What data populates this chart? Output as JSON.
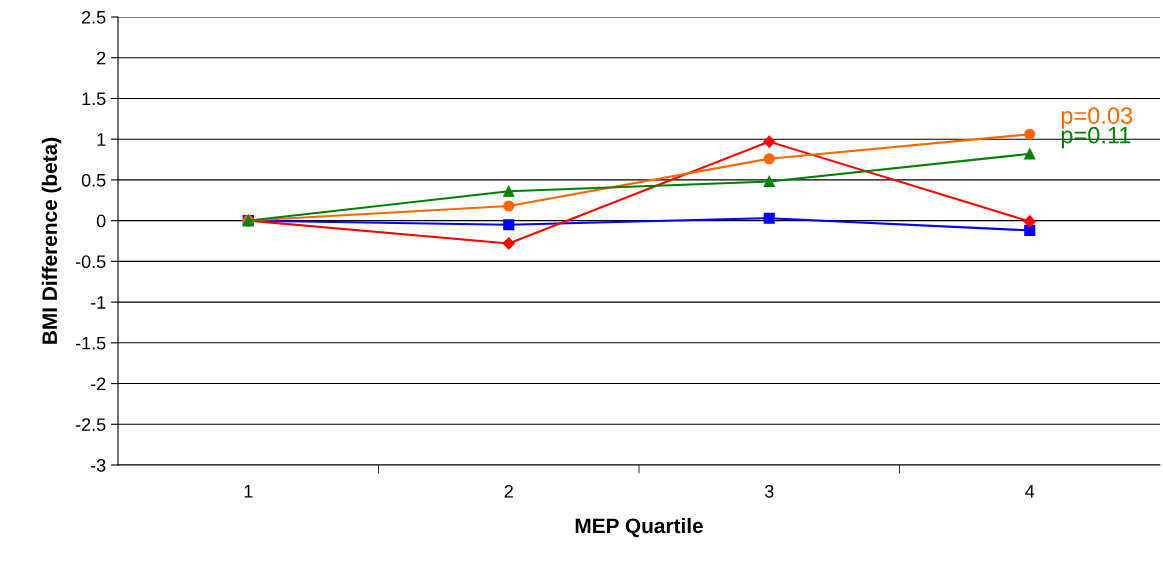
{
  "chart_data": {
    "type": "line",
    "xlabel": "MEP Quartile",
    "ylabel": "BMI Difference (beta)",
    "categories": [
      "1",
      "2",
      "3",
      "4"
    ],
    "series": [
      {
        "color": "#0000ff",
        "marker": "square",
        "values": [
          0,
          -0.05,
          0.03,
          -0.12
        ]
      },
      {
        "color": "#ff0000",
        "marker": "diamond",
        "values": [
          0,
          -0.28,
          0.97,
          -0.01
        ]
      },
      {
        "color": "#ff6600",
        "marker": "circle",
        "values": [
          0,
          0.18,
          0.76,
          1.06
        ]
      },
      {
        "color": "#008000",
        "marker": "triangle",
        "values": [
          0,
          0.36,
          0.48,
          0.82
        ]
      }
    ],
    "ylim": [
      -3,
      2.5
    ],
    "yticks": [
      -3,
      -2.5,
      -2,
      -1.5,
      -1,
      -0.5,
      0,
      0.5,
      1,
      1.5,
      2,
      2.5
    ],
    "grid": "y",
    "legend": false,
    "annotations": [
      {
        "text": "p=0.03",
        "x": "4",
        "y": 1.06
      },
      {
        "text": "p=0.11",
        "x": "4",
        "y": 0.82
      }
    ]
  }
}
